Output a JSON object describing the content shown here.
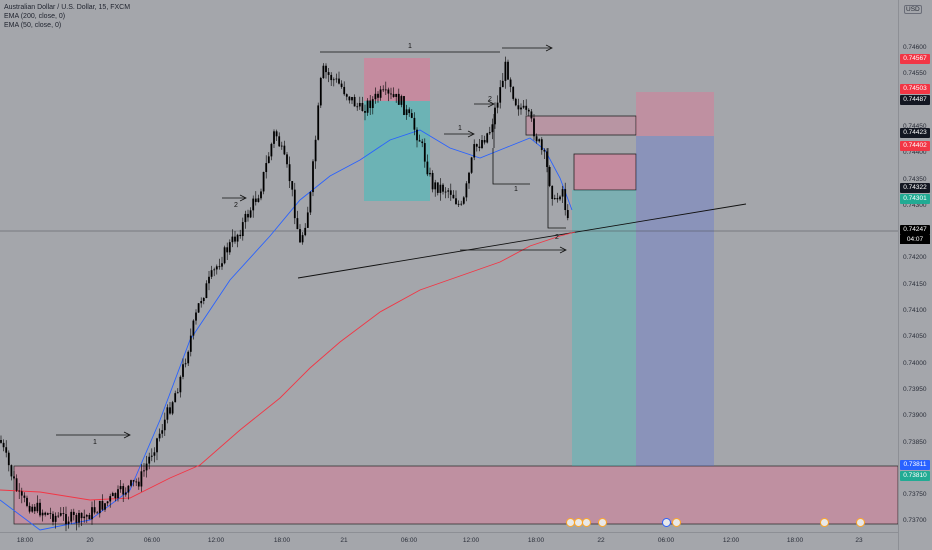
{
  "legend": {
    "symbol": "Australian Dollar / U.S. Dollar, 15, FXCM",
    "ema200": "EMA (200, close, 0)",
    "ema50": "EMA (50, close, 0)"
  },
  "currency_button": "USD",
  "price_ticks": [
    "0.74600",
    "0.74550",
    "0.74500",
    "0.74450",
    "0.74400",
    "0.74350",
    "0.74300",
    "0.74250",
    "0.74200",
    "0.74150",
    "0.74100",
    "0.74050",
    "0.74000",
    "0.73950",
    "0.73900",
    "0.73850",
    "0.73800",
    "0.73750",
    "0.73700"
  ],
  "price_tags": [
    {
      "value": "0.74567",
      "color": "#f23645"
    },
    {
      "value": "0.74503",
      "color": "#f23645"
    },
    {
      "value": "0.74487",
      "color": "#131722"
    },
    {
      "value": "0.74423",
      "color": "#131722"
    },
    {
      "value": "0.74402",
      "color": "#f23645"
    },
    {
      "value": "0.74322",
      "color": "#131722"
    },
    {
      "value": "0.74301",
      "color": "#22ab94"
    },
    {
      "value": "0.73811",
      "color": "#2962ff"
    },
    {
      "value": "0.73810",
      "color": "#22ab94"
    }
  ],
  "last_price": {
    "value": "0.74247",
    "countdown": "04:07"
  },
  "time_ticks": [
    "18:00",
    "20",
    "06:00",
    "12:00",
    "18:00",
    "21",
    "06:00",
    "12:00",
    "18:00",
    "22",
    "06:00",
    "12:00",
    "18:00",
    "23"
  ],
  "annotations": [
    "1",
    "2",
    "1",
    "2",
    "1",
    "2",
    "1",
    "2",
    "1",
    "2"
  ],
  "colors": {
    "background": "#a4a6ab",
    "ema200": "#f23645",
    "ema50": "#2962ff",
    "candle": "#000000",
    "zone_pink": "#e05a7a",
    "zone_teal": "#2fb4b4",
    "zone_blue": "#5b6fd6"
  },
  "chart_data": {
    "type": "candlestick",
    "symbol": "AUDUSD",
    "interval": "15",
    "ylim": [
      0.737,
      0.7465
    ],
    "ema200": [
      0.7377,
      0.7376,
      0.7378,
      0.738,
      0.7385,
      0.7392,
      0.74,
      0.741,
      0.7418,
      0.7425,
      0.743,
      0.742,
      0.7422,
      0.7424
    ],
    "ema50": [
      0.7372,
      0.7374,
      0.738,
      0.7395,
      0.7415,
      0.743,
      0.7445,
      0.744,
      0.7438,
      0.7443,
      0.7433,
      0.7424
    ]
  }
}
